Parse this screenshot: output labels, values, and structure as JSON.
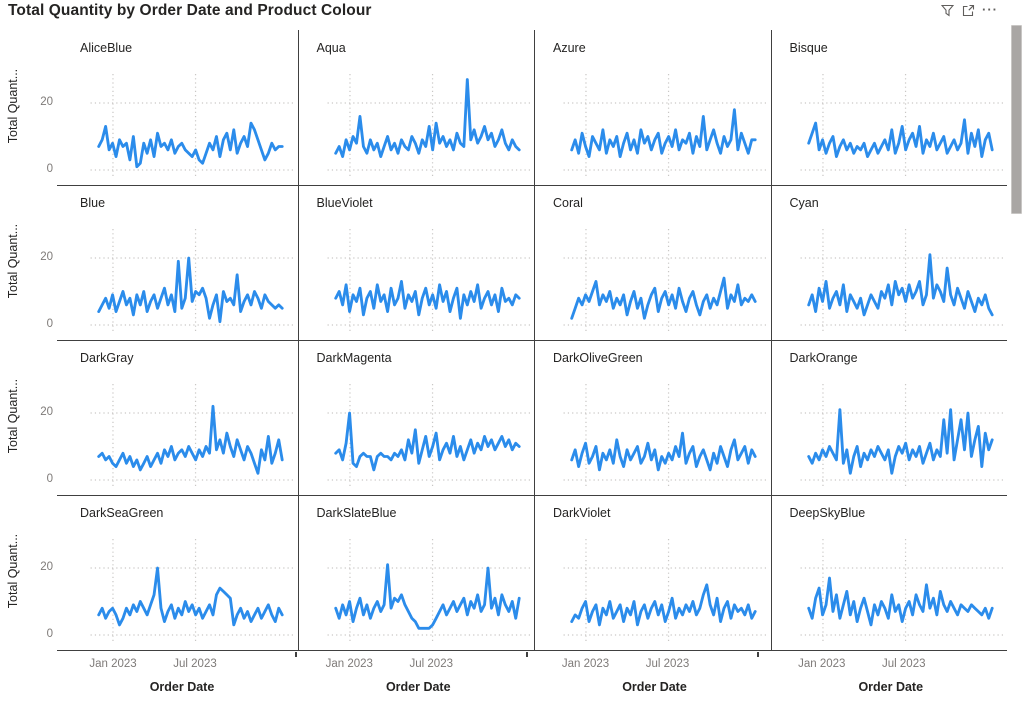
{
  "header": {
    "title": "Total Quantity by Order Date and Product Colour",
    "more_glyph": "···"
  },
  "y_axis": {
    "title": "Total Quant...",
    "ticks": [
      "20",
      "0"
    ]
  },
  "x_axis": {
    "title": "Order Date",
    "ticks": [
      "Jan 2023",
      "Jul 2023"
    ]
  },
  "colors": {
    "line": "#2B8CEB",
    "gridline": "#C9C7C5",
    "divider": "#404040",
    "text_dark": "#252423",
    "text_gray": "#7E7A78",
    "icon_gray": "#605E5C",
    "scroll_thumb": "#A9A6A4"
  },
  "chart_data": {
    "type": "line",
    "title": "Total Quantity by Order Date and Product Colour",
    "layout": "small-multiples-4x4",
    "xlabel": "Order Date",
    "ylabel": "Total Quantity",
    "x_ticks": [
      "Jan 2023",
      "Jul 2023"
    ],
    "x_granularity": "weekly, Dec 2022 - Jan 2024",
    "ylim": [
      0,
      28
    ],
    "y_gridlines": [
      0,
      20
    ],
    "grid": true,
    "legend": false,
    "series": [
      {
        "name": "AliceBlue",
        "values": [
          7,
          9,
          13,
          6,
          8,
          4,
          9,
          7,
          8,
          3,
          10,
          1,
          2,
          8,
          5,
          9,
          4,
          11,
          7,
          8,
          6,
          9,
          5,
          7,
          8,
          6,
          5,
          4,
          6,
          3,
          2,
          5,
          8,
          6,
          10,
          4,
          9,
          11,
          6,
          12,
          5,
          8,
          10,
          7,
          14,
          12,
          9,
          6,
          3,
          5,
          8,
          6,
          7,
          7
        ]
      },
      {
        "name": "Aqua",
        "values": [
          5,
          7,
          4,
          9,
          6,
          10,
          8,
          16,
          7,
          5,
          9,
          6,
          8,
          4,
          7,
          10,
          6,
          8,
          5,
          9,
          7,
          6,
          10,
          8,
          5,
          9,
          7,
          13,
          6,
          14,
          8,
          10,
          7,
          9,
          6,
          11,
          8,
          7,
          27,
          9,
          12,
          8,
          10,
          13,
          9,
          11,
          7,
          9,
          12,
          8,
          6,
          9,
          7,
          6
        ]
      },
      {
        "name": "Azure",
        "values": [
          6,
          9,
          5,
          11,
          7,
          4,
          10,
          8,
          6,
          12,
          5,
          9,
          7,
          10,
          4,
          8,
          11,
          6,
          9,
          5,
          12,
          8,
          10,
          6,
          9,
          11,
          5,
          8,
          10,
          7,
          12,
          6,
          9,
          8,
          11,
          5,
          10,
          7,
          16,
          6,
          9,
          12,
          8,
          5,
          10,
          7,
          9,
          18,
          6,
          11,
          8,
          5,
          9,
          9
        ]
      },
      {
        "name": "Bisque",
        "values": [
          8,
          11,
          14,
          6,
          9,
          5,
          8,
          10,
          4,
          7,
          9,
          6,
          8,
          5,
          7,
          6,
          8,
          4,
          6,
          8,
          5,
          7,
          9,
          6,
          12,
          5,
          8,
          13,
          6,
          9,
          11,
          7,
          13,
          5,
          9,
          7,
          11,
          6,
          8,
          10,
          5,
          7,
          9,
          6,
          8,
          15,
          5,
          11,
          7,
          12,
          4,
          9,
          11,
          6
        ]
      },
      {
        "name": "Blue",
        "values": [
          4,
          6,
          8,
          5,
          9,
          4,
          7,
          10,
          6,
          8,
          3,
          9,
          6,
          10,
          4,
          7,
          9,
          5,
          8,
          11,
          6,
          9,
          4,
          19,
          5,
          8,
          20,
          7,
          10,
          9,
          11,
          8,
          2,
          6,
          9,
          1,
          10,
          7,
          8,
          6,
          15,
          4,
          7,
          9,
          6,
          10,
          8,
          5,
          9,
          7,
          6,
          5,
          6,
          5
        ]
      },
      {
        "name": "BlueViolet",
        "values": [
          8,
          10,
          6,
          12,
          4,
          9,
          7,
          11,
          3,
          8,
          10,
          5,
          12,
          7,
          9,
          4,
          11,
          6,
          8,
          13,
          5,
          9,
          7,
          10,
          3,
          8,
          11,
          6,
          9,
          5,
          12,
          7,
          10,
          4,
          8,
          11,
          2,
          9,
          6,
          10,
          7,
          12,
          5,
          8,
          10,
          6,
          9,
          4,
          11,
          7,
          8,
          6,
          9,
          8
        ]
      },
      {
        "name": "Coral",
        "values": [
          2,
          5,
          8,
          6,
          9,
          7,
          10,
          13,
          6,
          9,
          7,
          10,
          5,
          8,
          6,
          9,
          3,
          7,
          10,
          5,
          8,
          2,
          6,
          9,
          11,
          4,
          8,
          10,
          6,
          9,
          5,
          11,
          7,
          4,
          8,
          10,
          6,
          3,
          7,
          9,
          5,
          8,
          6,
          10,
          14,
          5,
          9,
          7,
          12,
          6,
          8,
          7,
          9,
          7
        ]
      },
      {
        "name": "Cyan",
        "values": [
          6,
          9,
          4,
          11,
          7,
          13,
          5,
          8,
          10,
          6,
          12,
          4,
          9,
          7,
          5,
          8,
          3,
          6,
          9,
          7,
          5,
          10,
          8,
          12,
          6,
          13,
          9,
          11,
          7,
          12,
          8,
          10,
          13,
          6,
          9,
          21,
          8,
          12,
          10,
          7,
          17,
          9,
          6,
          11,
          8,
          5,
          10,
          7,
          4,
          8,
          6,
          9,
          5,
          3
        ]
      },
      {
        "name": "DarkGray",
        "values": [
          7,
          8,
          6,
          7,
          5,
          4,
          6,
          8,
          5,
          7,
          4,
          6,
          3,
          5,
          7,
          4,
          6,
          8,
          5,
          9,
          7,
          10,
          6,
          8,
          9,
          7,
          10,
          8,
          6,
          9,
          7,
          10,
          8,
          22,
          9,
          12,
          8,
          14,
          10,
          7,
          12,
          9,
          6,
          10,
          8,
          5,
          2,
          9,
          6,
          13,
          5,
          8,
          12,
          6
        ]
      },
      {
        "name": "DarkMagenta",
        "values": [
          8,
          9,
          6,
          11,
          20,
          5,
          4,
          7,
          8,
          7,
          7,
          3,
          7,
          8,
          7,
          7,
          6,
          8,
          7,
          9,
          6,
          12,
          8,
          15,
          5,
          9,
          13,
          7,
          10,
          14,
          6,
          9,
          11,
          8,
          13,
          7,
          10,
          6,
          9,
          12,
          8,
          11,
          9,
          13,
          10,
          12,
          9,
          11,
          13,
          10,
          12,
          9,
          11,
          10
        ]
      },
      {
        "name": "DarkOliveGreen",
        "values": [
          6,
          9,
          4,
          8,
          11,
          5,
          7,
          10,
          3,
          8,
          6,
          9,
          5,
          12,
          7,
          4,
          9,
          6,
          8,
          10,
          5,
          7,
          11,
          6,
          9,
          3,
          7,
          5,
          8,
          6,
          10,
          7,
          14,
          5,
          8,
          10,
          4,
          7,
          9,
          6,
          3,
          8,
          5,
          10,
          7,
          4,
          9,
          12,
          6,
          8,
          10,
          5,
          9,
          7
        ]
      },
      {
        "name": "DarkOrange",
        "values": [
          7,
          5,
          8,
          6,
          9,
          7,
          10,
          8,
          6,
          21,
          5,
          9,
          2,
          7,
          10,
          4,
          8,
          6,
          9,
          7,
          10,
          8,
          6,
          9,
          2,
          7,
          10,
          8,
          11,
          6,
          9,
          7,
          10,
          5,
          8,
          11,
          6,
          9,
          7,
          18,
          8,
          21,
          6,
          12,
          18,
          9,
          20,
          7,
          12,
          16,
          4,
          14,
          9,
          12
        ]
      },
      {
        "name": "DarkSeaGreen",
        "values": [
          6,
          8,
          5,
          7,
          8,
          6,
          3,
          5,
          8,
          6,
          9,
          7,
          10,
          8,
          6,
          9,
          12,
          20,
          8,
          4,
          7,
          9,
          5,
          8,
          6,
          10,
          7,
          9,
          6,
          8,
          5,
          7,
          9,
          6,
          12,
          14,
          13,
          12,
          11,
          3,
          6,
          8,
          5,
          7,
          4,
          6,
          8,
          5,
          7,
          9,
          6,
          4,
          8,
          6
        ]
      },
      {
        "name": "DarkSlateBlue",
        "values": [
          8,
          5,
          9,
          6,
          10,
          4,
          8,
          11,
          6,
          9,
          5,
          8,
          10,
          7,
          9,
          21,
          8,
          11,
          10,
          12,
          9,
          7,
          5,
          4,
          2,
          2,
          2,
          2,
          3,
          5,
          7,
          9,
          6,
          8,
          10,
          7,
          9,
          11,
          6,
          10,
          8,
          12,
          7,
          9,
          20,
          8,
          11,
          6,
          12,
          9,
          7,
          10,
          5,
          11
        ]
      },
      {
        "name": "DarkViolet",
        "values": [
          4,
          6,
          5,
          8,
          10,
          4,
          7,
          9,
          3,
          8,
          6,
          10,
          5,
          7,
          9,
          4,
          8,
          6,
          10,
          3,
          7,
          9,
          5,
          8,
          10,
          6,
          9,
          4,
          7,
          11,
          5,
          8,
          6,
          9,
          7,
          10,
          6,
          8,
          12,
          15,
          9,
          6,
          11,
          4,
          8,
          10,
          5,
          9,
          7,
          8,
          6,
          9,
          5,
          7
        ]
      },
      {
        "name": "DeepSkyBlue",
        "values": [
          8,
          5,
          11,
          14,
          6,
          9,
          17,
          7,
          12,
          5,
          9,
          13,
          6,
          10,
          4,
          8,
          11,
          7,
          3,
          9,
          6,
          10,
          8,
          5,
          12,
          7,
          9,
          4,
          8,
          10,
          6,
          12,
          9,
          7,
          15,
          8,
          11,
          6,
          13,
          9,
          7,
          10,
          8,
          6,
          9,
          8,
          7,
          9,
          8,
          7,
          6,
          8,
          5,
          8
        ]
      }
    ]
  }
}
